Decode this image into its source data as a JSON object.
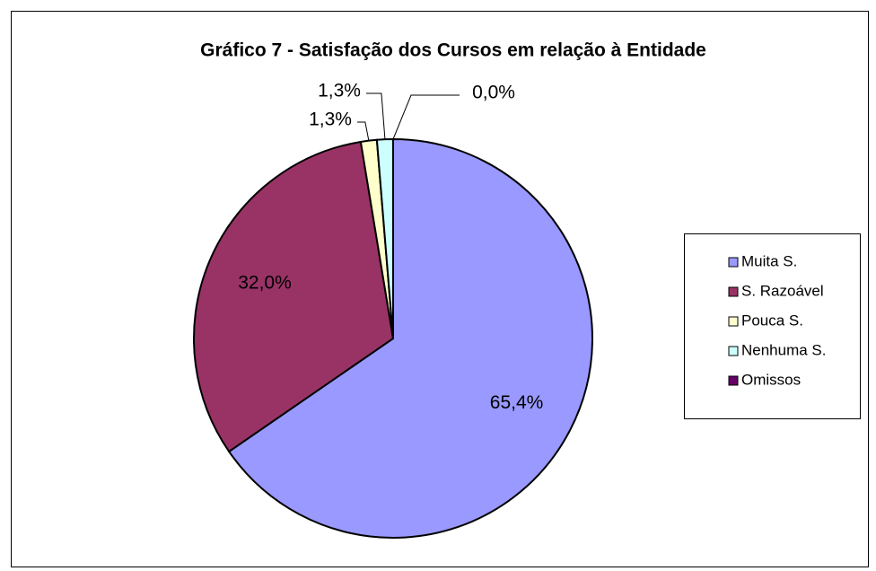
{
  "chart_data": {
    "type": "pie",
    "title": "Gráfico 7 - Satisfação dos Cursos em relação à Entidade",
    "categories": [
      "Muita S.",
      "S. Razoável",
      "Pouca S.",
      "Nenhuma S.",
      "Omissos"
    ],
    "values": [
      65.4,
      32.0,
      1.3,
      1.3,
      0.0
    ],
    "value_labels": [
      "65,4%",
      "32,0%",
      "1,3%",
      "1,3%",
      "0,0%"
    ],
    "colors": [
      "#9999ff",
      "#993366",
      "#ffffcc",
      "#ccffff",
      "#660066"
    ],
    "legend": "right"
  }
}
